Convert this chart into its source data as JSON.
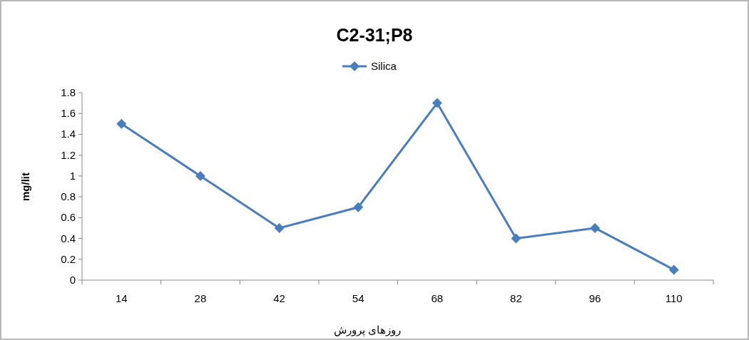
{
  "chart_data": {
    "type": "line",
    "title": "C2-31;P8",
    "xlabel": "روزهای پرورش",
    "ylabel": "mg/lit",
    "categories": [
      "14",
      "28",
      "42",
      "54",
      "68",
      "82",
      "96",
      "110"
    ],
    "series": [
      {
        "name": "Silica",
        "color": "#4a7ebb",
        "values": [
          1.5,
          1.0,
          0.5,
          0.7,
          1.7,
          0.4,
          0.5,
          0.1
        ]
      }
    ],
    "ylim": [
      0,
      1.8
    ],
    "yticks": [
      0,
      0.2,
      0.4,
      0.6,
      0.8,
      1,
      1.2,
      1.4,
      1.6,
      1.8
    ],
    "grid": false,
    "legend": "top",
    "marker": "diamond",
    "line_style": "solid"
  }
}
